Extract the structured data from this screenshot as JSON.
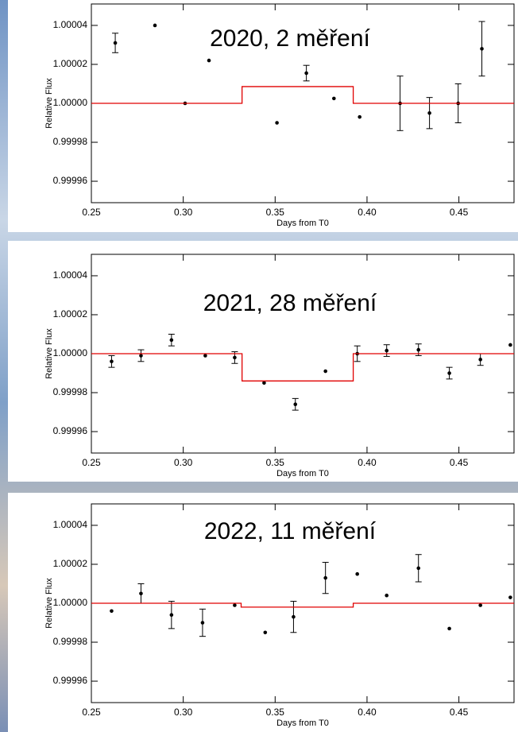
{
  "chart_data": [
    {
      "type": "scatter",
      "annotation": "2020, 2 měření",
      "xlabel": "Days from T0",
      "ylabel": "Relative Flux",
      "xlim": [
        0.25,
        0.48
      ],
      "ylim": [
        0.999949,
        1.000051
      ],
      "xticks": [
        0.25,
        {
          "value": 0.3,
          "label": "0.30"
        },
        0.35,
        {
          "value": 0.4,
          "label": "0.40"
        },
        0.45
      ],
      "yticks": [
        0.99996,
        0.99998,
        {
          "value": 1,
          "label": "1.00000"
        },
        1.00002,
        1.00004
      ],
      "series": [
        {
          "type": "scatter",
          "color": "#000000",
          "x": [
            0.263,
            0.2846,
            0.301,
            0.314,
            0.351,
            0.367,
            0.382,
            0.396,
            0.418,
            0.434,
            0.4496,
            0.4625
          ],
          "values": [
            1.000031,
            1.00004,
            1.0,
            1.000022,
            0.99999,
            1.0000155,
            1.0000025,
            0.999993,
            1.0,
            0.999995,
            1.0,
            1.000028
          ],
          "errors": [
            5e-06,
            null,
            null,
            null,
            null,
            4e-06,
            null,
            null,
            1.4e-05,
            8e-06,
            1e-05,
            1.4e-05
          ]
        },
        {
          "type": "line",
          "color": "#e00000",
          "x": [
            0.25,
            0.332,
            0.332,
            0.3925,
            0.3925,
            0.48
          ],
          "values": [
            1.0,
            1.0,
            1.0000086,
            1.0000086,
            1.0,
            1.0
          ]
        }
      ]
    },
    {
      "type": "scatter",
      "annotation": "2021, 28 měření",
      "xlabel": "Days from T0",
      "ylabel": "Relative Flux",
      "xlim": [
        0.25,
        0.48
      ],
      "ylim": [
        0.999949,
        1.000051
      ],
      "xticks": [
        0.25,
        {
          "value": 0.3,
          "label": "0.30"
        },
        0.35,
        {
          "value": 0.4,
          "label": "0.40"
        },
        0.45
      ],
      "yticks": [
        0.99996,
        0.99998,
        {
          "value": 1,
          "label": "1.00000"
        },
        1.00002,
        1.00004
      ],
      "series": [
        {
          "type": "scatter",
          "color": "#000000",
          "x": [
            0.261,
            0.277,
            0.2936,
            0.312,
            0.328,
            0.344,
            0.361,
            0.3774,
            0.3947,
            0.4107,
            0.428,
            0.4448,
            0.4617,
            0.478
          ],
          "values": [
            0.999996,
            0.999999,
            1.000007,
            0.999999,
            0.999998,
            0.999985,
            0.999974,
            0.999991,
            1.0,
            1.0000016,
            1.000002,
            0.99999,
            0.999997,
            1.0000045
          ],
          "errors": [
            3e-06,
            3e-06,
            3e-06,
            null,
            3e-06,
            null,
            3e-06,
            null,
            4e-06,
            3e-06,
            3e-06,
            3e-06,
            3e-06,
            null
          ]
        },
        {
          "type": "line",
          "color": "#e00000",
          "x": [
            0.25,
            0.332,
            0.332,
            0.3925,
            0.3925,
            0.48
          ],
          "values": [
            1.0,
            1.0,
            0.999986,
            0.999986,
            1.0,
            1.0
          ]
        }
      ]
    },
    {
      "type": "scatter",
      "annotation": "2022, 11 měření",
      "xlabel": "Days from T0",
      "ylabel": "Relative Flux",
      "xlim": [
        0.25,
        0.48
      ],
      "ylim": [
        0.999949,
        1.000051
      ],
      "xticks": [
        0.25,
        {
          "value": 0.3,
          "label": "0.30"
        },
        0.35,
        {
          "value": 0.4,
          "label": "0.40"
        },
        0.45
      ],
      "yticks": [
        0.99996,
        0.99998,
        {
          "value": 1,
          "label": "1.00000"
        },
        1.00002,
        1.00004
      ],
      "series": [
        {
          "type": "scatter",
          "color": "#000000",
          "x": [
            0.261,
            0.277,
            0.2936,
            0.3105,
            0.328,
            0.3446,
            0.36,
            0.3774,
            0.3947,
            0.4107,
            0.428,
            0.4448,
            0.4617,
            0.478
          ],
          "values": [
            0.999996,
            1.000005,
            0.999994,
            0.99999,
            0.999999,
            0.999985,
            0.999993,
            1.000013,
            1.000015,
            1.000004,
            1.000018,
            0.999987,
            0.999999,
            1.000003
          ],
          "errors": [
            null,
            5e-06,
            7e-06,
            7e-06,
            null,
            null,
            8e-06,
            8e-06,
            null,
            null,
            7e-06,
            null,
            null,
            null
          ]
        },
        {
          "type": "line",
          "color": "#e00000",
          "x": [
            0.25,
            0.3315,
            0.3315,
            0.3925,
            0.3925,
            0.48
          ],
          "values": [
            1.0,
            1.0,
            0.999998,
            0.999998,
            1.0,
            1.0
          ]
        }
      ]
    }
  ]
}
